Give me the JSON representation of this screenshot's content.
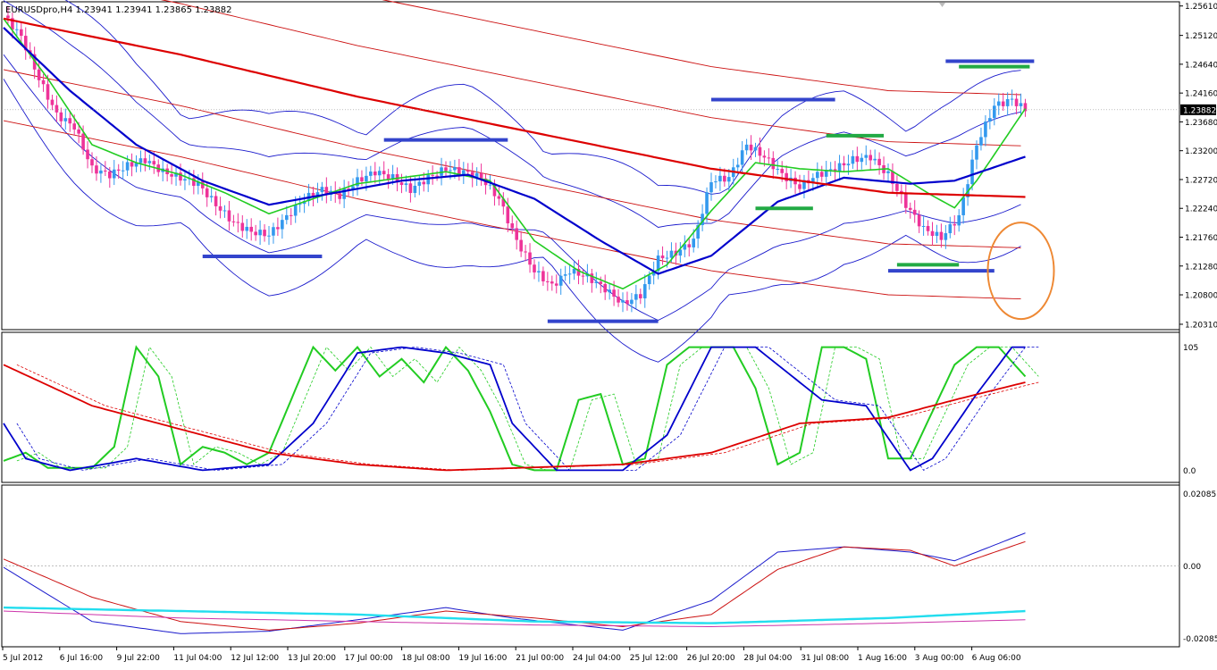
{
  "header": {
    "symbol_line": "EURUSDpro,H4  1.23941 1.23941 1.23865 1.23882"
  },
  "colors": {
    "bull_candle": "#3399ee",
    "bear_candle": "#ee3399",
    "ma_fast": "#22cc22",
    "ma_mid": "#0000cc",
    "ma_slow": "#dd0000",
    "band_blue": "#1a1acc",
    "band_red": "#cc1111",
    "level_blue": "#3344cc",
    "level_green": "#22aa44",
    "circle": "#ee8833",
    "stoch_main": "#22cc22",
    "stoch_signal": "#0000cc",
    "stoch_slow": "#dd0000",
    "macd_a": "#1a1acc",
    "macd_b": "#cc1111",
    "macd_c": "#22ddee",
    "macd_d": "#cc33aa"
  },
  "chart_data": [
    {
      "type": "candlestick",
      "panel": "price",
      "symbol": "EURUSDpro",
      "timeframe": "H4",
      "ohlc_header": {
        "open": 1.23941,
        "high": 1.23941,
        "low": 1.23865,
        "close": 1.23882
      },
      "current_price_label": "1.23882",
      "y_ticks": [
        "1.25610",
        "1.25120",
        "1.24640",
        "1.24160",
        "1.23680",
        "1.23200",
        "1.22720",
        "1.22240",
        "1.21760",
        "1.21280",
        "1.20800",
        "1.20310"
      ],
      "ylim": [
        1.2025,
        1.2565
      ],
      "x_tick_labels": [
        "5 Jul 2012",
        "6 Jul 16:00",
        "9 Jul 22:00",
        "11 Jul 04:00",
        "12 Jul 12:00",
        "13 Jul 20:00",
        "17 Jul 00:00",
        "18 Jul 08:00",
        "19 Jul 16:00",
        "21 Jul 00:00",
        "24 Jul 04:00",
        "25 Jul 12:00",
        "26 Jul 20:00",
        "28 Jul 04:00",
        "31 Jul 08:00",
        "1 Aug 16:00",
        "3 Aug 00:00",
        "6 Aug 06:00"
      ],
      "close_path": [
        [
          0,
          1.2545
        ],
        [
          4,
          1.251
        ],
        [
          8,
          1.244
        ],
        [
          12,
          1.238
        ],
        [
          16,
          1.236
        ],
        [
          20,
          1.229
        ],
        [
          24,
          1.228
        ],
        [
          28,
          1.2295
        ],
        [
          32,
          1.2305
        ],
        [
          36,
          1.2285
        ],
        [
          40,
          1.2275
        ],
        [
          44,
          1.2265
        ],
        [
          48,
          1.223
        ],
        [
          52,
          1.22
        ],
        [
          56,
          1.2185
        ],
        [
          60,
          1.218
        ],
        [
          64,
          1.221
        ],
        [
          68,
          1.224
        ],
        [
          72,
          1.2255
        ],
        [
          76,
          1.2245
        ],
        [
          80,
          1.227
        ],
        [
          84,
          1.2285
        ],
        [
          88,
          1.2275
        ],
        [
          92,
          1.2255
        ],
        [
          96,
          1.2275
        ],
        [
          100,
          1.229
        ],
        [
          104,
          1.2285
        ],
        [
          108,
          1.2275
        ],
        [
          112,
          1.224
        ],
        [
          116,
          1.217
        ],
        [
          120,
          1.212
        ],
        [
          124,
          1.2095
        ],
        [
          128,
          1.212
        ],
        [
          132,
          1.211
        ],
        [
          136,
          1.209
        ],
        [
          140,
          1.2065
        ],
        [
          144,
          1.208
        ],
        [
          148,
          1.214
        ],
        [
          152,
          1.215
        ],
        [
          156,
          1.217
        ],
        [
          160,
          1.227
        ],
        [
          164,
          1.2275
        ],
        [
          168,
          1.233
        ],
        [
          172,
          1.231
        ],
        [
          176,
          1.228
        ],
        [
          180,
          1.226
        ],
        [
          184,
          1.228
        ],
        [
          188,
          1.229
        ],
        [
          192,
          1.2305
        ],
        [
          196,
          1.231
        ],
        [
          200,
          1.228
        ],
        [
          204,
          1.223
        ],
        [
          208,
          1.219
        ],
        [
          212,
          1.2175
        ],
        [
          216,
          1.221
        ],
        [
          220,
          1.233
        ],
        [
          224,
          1.2395
        ],
        [
          228,
          1.2405
        ],
        [
          231,
          1.2388
        ]
      ],
      "moving_averages": [
        {
          "color": "green",
          "path": [
            [
              0,
              1.254
            ],
            [
              10,
              1.244
            ],
            [
              20,
              1.233
            ],
            [
              30,
              1.23
            ],
            [
              40,
              1.228
            ],
            [
              50,
              1.225
            ],
            [
              60,
              1.2215
            ],
            [
              70,
              1.224
            ],
            [
              80,
              1.2265
            ],
            [
              90,
              1.2275
            ],
            [
              100,
              1.2285
            ],
            [
              110,
              1.227
            ],
            [
              120,
              1.217
            ],
            [
              130,
              1.212
            ],
            [
              140,
              1.209
            ],
            [
              150,
              1.213
            ],
            [
              160,
              1.222
            ],
            [
              170,
              1.23
            ],
            [
              180,
              1.229
            ],
            [
              190,
              1.2285
            ],
            [
              200,
              1.229
            ],
            [
              210,
              1.2245
            ],
            [
              215,
              1.2225
            ],
            [
              220,
              1.227
            ],
            [
              231,
              1.239
            ]
          ]
        },
        {
          "color": "blue",
          "path": [
            [
              0,
              1.2525
            ],
            [
              15,
              1.242
            ],
            [
              30,
              1.233
            ],
            [
              45,
              1.227
            ],
            [
              60,
              1.223
            ],
            [
              75,
              1.225
            ],
            [
              90,
              1.227
            ],
            [
              105,
              1.228
            ],
            [
              120,
              1.224
            ],
            [
              135,
              1.217
            ],
            [
              148,
              1.2115
            ],
            [
              160,
              1.2145
            ],
            [
              175,
              1.2235
            ],
            [
              190,
              1.2275
            ],
            [
              205,
              1.2265
            ],
            [
              215,
              1.227
            ],
            [
              231,
              1.231
            ]
          ]
        },
        {
          "color": "red",
          "path": [
            [
              0,
              1.254
            ],
            [
              40,
              1.248
            ],
            [
              80,
              1.241
            ],
            [
              120,
              1.235
            ],
            [
              160,
              1.229
            ],
            [
              200,
              1.225
            ],
            [
              231,
              1.2243
            ]
          ]
        }
      ],
      "levels": [
        {
          "color": "blue",
          "price": 1.2144,
          "from": 45,
          "to": 72
        },
        {
          "color": "blue",
          "price": 1.2338,
          "from": 86,
          "to": 114
        },
        {
          "color": "blue",
          "price": 1.2036,
          "from": 123,
          "to": 148
        },
        {
          "color": "blue",
          "price": 1.2405,
          "from": 160,
          "to": 188
        },
        {
          "color": "blue",
          "price": 1.212,
          "from": 200,
          "to": 224
        },
        {
          "color": "blue",
          "price": 1.2469,
          "from": 213,
          "to": 233
        },
        {
          "color": "green",
          "price": 1.2224,
          "from": 170,
          "to": 183
        },
        {
          "color": "green",
          "price": 1.2345,
          "from": 186,
          "to": 199
        },
        {
          "color": "green",
          "price": 1.213,
          "from": 202,
          "to": 216
        },
        {
          "color": "green",
          "price": 1.246,
          "from": 216,
          "to": 232
        }
      ],
      "annotation": {
        "shape": "ellipse",
        "color": "orange",
        "center_bar": 230,
        "center_price": 1.212
      }
    },
    {
      "type": "line",
      "panel": "oscillator",
      "y_ticks": [
        "105",
        "0.0"
      ],
      "ylim": [
        -5,
        110
      ],
      "series": [
        {
          "color": "green",
          "path": [
            [
              0,
              8
            ],
            [
              5,
              15
            ],
            [
              10,
              2
            ],
            [
              20,
              2
            ],
            [
              25,
              20
            ],
            [
              30,
              105
            ],
            [
              35,
              80
            ],
            [
              40,
              5
            ],
            [
              45,
              20
            ],
            [
              50,
              15
            ],
            [
              55,
              5
            ],
            [
              60,
              15
            ],
            [
              65,
              60
            ],
            [
              70,
              130
            ],
            [
              75,
              85
            ],
            [
              80,
              110
            ],
            [
              85,
              80
            ],
            [
              90,
              95
            ],
            [
              95,
              75
            ],
            [
              100,
              105
            ],
            [
              105,
              85
            ],
            [
              110,
              50
            ],
            [
              115,
              5
            ],
            [
              120,
              0
            ],
            [
              125,
              0
            ],
            [
              130,
              60
            ],
            [
              135,
              65
            ],
            [
              140,
              5
            ],
            [
              145,
              10
            ],
            [
              150,
              90
            ],
            [
              155,
              105
            ],
            [
              160,
              115
            ],
            [
              165,
              120
            ],
            [
              170,
              70
            ],
            [
              175,
              5
            ],
            [
              180,
              15
            ],
            [
              185,
              110
            ],
            [
              190,
              115
            ],
            [
              195,
              95
            ],
            [
              200,
              10
            ],
            [
              205,
              10
            ],
            [
              210,
              50
            ],
            [
              215,
              90
            ],
            [
              220,
              120
            ],
            [
              225,
              110
            ],
            [
              231,
              80
            ]
          ]
        },
        {
          "color": "blue",
          "path": [
            [
              0,
              40
            ],
            [
              5,
              10
            ],
            [
              15,
              0
            ],
            [
              30,
              10
            ],
            [
              45,
              0
            ],
            [
              60,
              5
            ],
            [
              70,
              40
            ],
            [
              80,
              100
            ],
            [
              90,
              120
            ],
            [
              100,
              100
            ],
            [
              110,
              90
            ],
            [
              115,
              40
            ],
            [
              125,
              0
            ],
            [
              140,
              0
            ],
            [
              150,
              30
            ],
            [
              160,
              115
            ],
            [
              170,
              115
            ],
            [
              185,
              60
            ],
            [
              195,
              55
            ],
            [
              205,
              0
            ],
            [
              210,
              10
            ],
            [
              220,
              65
            ],
            [
              228,
              112
            ],
            [
              231,
              112
            ]
          ]
        },
        {
          "color": "red",
          "path": [
            [
              0,
              90
            ],
            [
              20,
              55
            ],
            [
              40,
              35
            ],
            [
              60,
              15
            ],
            [
              80,
              5
            ],
            [
              100,
              0
            ],
            [
              140,
              5
            ],
            [
              160,
              15
            ],
            [
              180,
              40
            ],
            [
              200,
              45
            ],
            [
              215,
              60
            ],
            [
              231,
              75
            ]
          ]
        }
      ]
    },
    {
      "type": "line",
      "panel": "macd",
      "y_ticks": [
        "0.02085",
        "0.00",
        "-0.02085"
      ],
      "ylim": [
        -0.022,
        0.0215
      ],
      "series": [
        {
          "color": "blue",
          "path": [
            [
              0,
              -0.0004
            ],
            [
              20,
              -0.016
            ],
            [
              40,
              -0.0195
            ],
            [
              60,
              -0.0188
            ],
            [
              80,
              -0.0155
            ],
            [
              100,
              -0.012
            ],
            [
              115,
              -0.015
            ],
            [
              140,
              -0.0185
            ],
            [
              160,
              -0.01
            ],
            [
              175,
              0.004
            ],
            [
              190,
              0.0055
            ],
            [
              205,
              0.004
            ],
            [
              215,
              0.0015
            ],
            [
              231,
              0.0095
            ]
          ]
        },
        {
          "color": "red",
          "path": [
            [
              0,
              0.002
            ],
            [
              20,
              -0.009
            ],
            [
              40,
              -0.016
            ],
            [
              60,
              -0.0185
            ],
            [
              80,
              -0.0165
            ],
            [
              100,
              -0.013
            ],
            [
              120,
              -0.015
            ],
            [
              140,
              -0.0175
            ],
            [
              160,
              -0.014
            ],
            [
              175,
              -0.001
            ],
            [
              190,
              0.0055
            ],
            [
              205,
              0.0045
            ],
            [
              215,
              0.0
            ],
            [
              231,
              0.007
            ]
          ]
        },
        {
          "color": "cyan",
          "path": [
            [
              0,
              -0.012
            ],
            [
              40,
              -0.013
            ],
            [
              80,
              -0.014
            ],
            [
              120,
              -0.016
            ],
            [
              160,
              -0.0165
            ],
            [
              200,
              -0.015
            ],
            [
              231,
              -0.013
            ]
          ]
        },
        {
          "color": "magenta",
          "path": [
            [
              0,
              -0.013
            ],
            [
              40,
              -0.015
            ],
            [
              80,
              -0.016
            ],
            [
              120,
              -0.017
            ],
            [
              160,
              -0.0175
            ],
            [
              200,
              -0.0165
            ],
            [
              231,
              -0.0155
            ]
          ]
        }
      ]
    }
  ]
}
